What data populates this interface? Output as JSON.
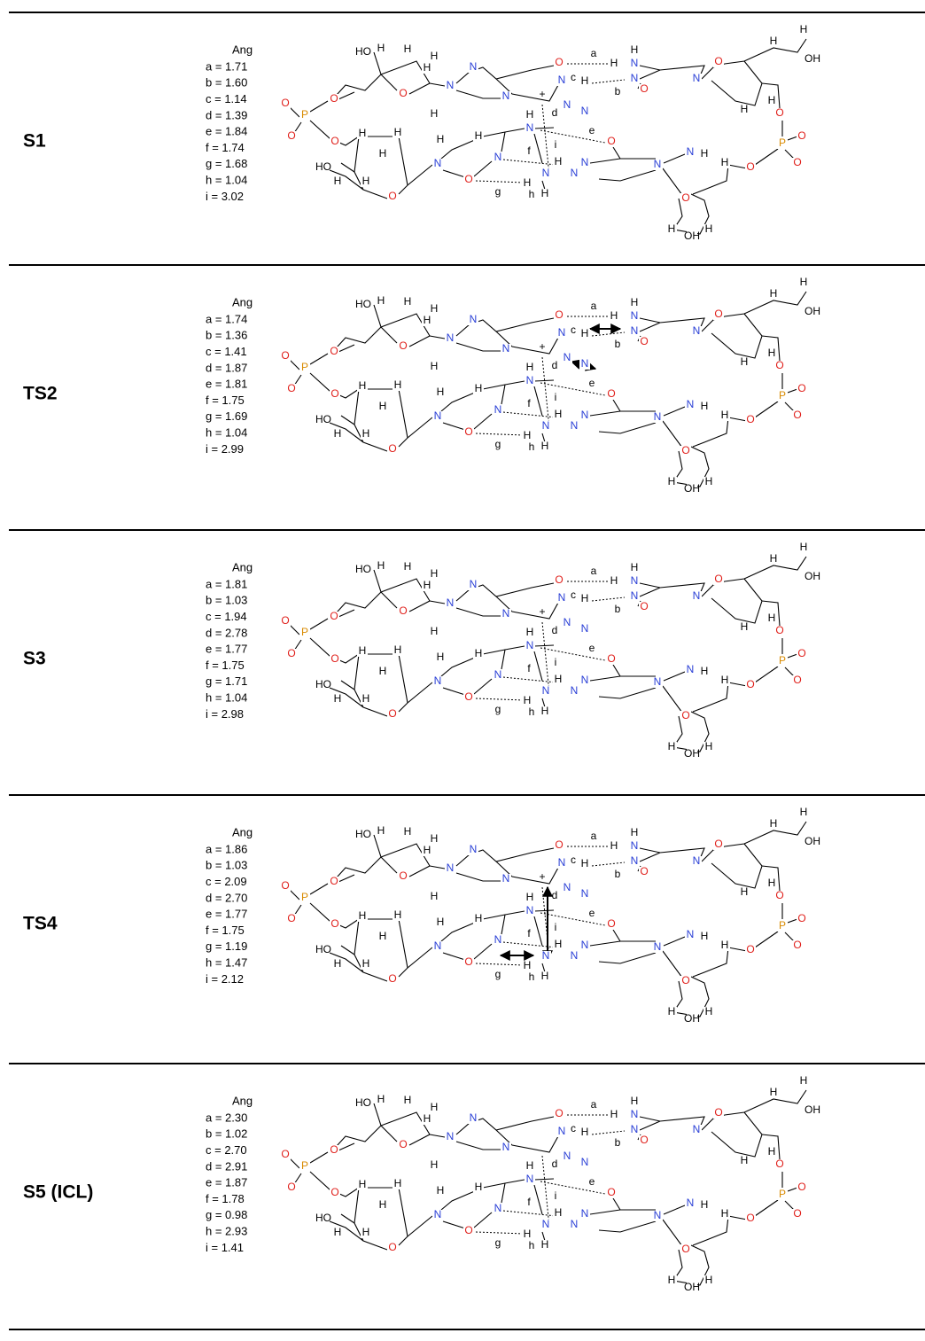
{
  "panels": [
    {
      "label": "S1",
      "unit": "Ang",
      "charge": "+",
      "distances": [
        "a = 1.71",
        "b = 1.60",
        "c = 1.14",
        "d = 1.39",
        "e = 1.84",
        "f = 1.74",
        "g = 1.68",
        "h = 1.04",
        "i = 3.02"
      ]
    },
    {
      "label": "TS2",
      "unit": "Ang",
      "charge": "+",
      "distances": [
        "a = 1.74",
        "b = 1.36",
        "c = 1.41",
        "d = 1.87",
        "e = 1.81",
        "f = 1.75",
        "g = 1.69",
        "h = 1.04",
        "i = 2.99"
      ]
    },
    {
      "label": "S3",
      "unit": "Ang",
      "charge": "+",
      "distances": [
        "a = 1.81",
        "b = 1.03",
        "c = 1.94",
        "d = 2.78",
        "e = 1.77",
        "f = 1.75",
        "g = 1.71",
        "h = 1.04",
        "i = 2.98"
      ]
    },
    {
      "label": "TS4",
      "unit": "Ang",
      "charge": "+",
      "distances": [
        "a = 1.86",
        "b = 1.03",
        "c = 2.09",
        "d = 2.70",
        "e = 1.77",
        "f = 1.75",
        "g = 1.19",
        "h = 1.47",
        "i = 2.12"
      ]
    },
    {
      "label": "S5 (ICL)",
      "unit": "Ang",
      "distances": [
        "a = 2.30",
        "b = 1.02",
        "c = 2.70",
        "d = 2.91",
        "e = 1.87",
        "f = 1.78",
        "g = 0.98",
        "h = 2.93",
        "i = 1.41"
      ]
    }
  ],
  "molecule": {
    "atoms": [
      "HO",
      "H",
      "H",
      "H",
      "O",
      "H",
      "H",
      "N",
      "N",
      "N",
      "O",
      "N",
      "H",
      "N",
      "N",
      "H",
      "N",
      "H",
      "N",
      "O",
      "N",
      "O",
      "H",
      "H",
      "OH",
      "H",
      "H",
      "O",
      "P",
      "O",
      "O",
      "O",
      "H",
      "O",
      "H",
      "OH",
      "H",
      "N",
      "N",
      "H",
      "O",
      "N",
      "N",
      "N",
      "H",
      "N",
      "O",
      "N",
      "H",
      "H",
      "H",
      "N",
      "H",
      "H",
      "HO",
      "H",
      "H",
      "O",
      "H",
      "H",
      "H",
      "O",
      "P",
      "O",
      "O",
      "O"
    ],
    "bond_labels": [
      "a",
      "b",
      "c",
      "d",
      "e",
      "f",
      "g",
      "h",
      "i"
    ]
  }
}
